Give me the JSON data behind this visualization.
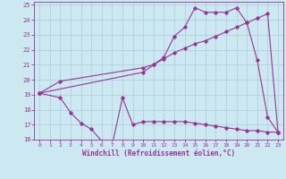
{
  "xlabel": "Windchill (Refroidissement éolien,°C)",
  "bg_color": "#cce8f0",
  "grid_color": "#aaccd8",
  "line_color": "#993399",
  "xlim": [
    -0.5,
    23.5
  ],
  "ylim": [
    16,
    25.2
  ],
  "xticks": [
    0,
    1,
    2,
    3,
    4,
    5,
    6,
    7,
    8,
    9,
    10,
    11,
    12,
    13,
    14,
    15,
    16,
    17,
    18,
    19,
    20,
    21,
    22,
    23
  ],
  "yticks": [
    16,
    17,
    18,
    19,
    20,
    21,
    22,
    23,
    24,
    25
  ],
  "series": [
    {
      "x": [
        0,
        2,
        3,
        4,
        5,
        6,
        7,
        8,
        9,
        10,
        11,
        12,
        13,
        14,
        15,
        16,
        17,
        18,
        19,
        20,
        21,
        22,
        23
      ],
      "y": [
        19.1,
        18.8,
        17.8,
        17.1,
        16.7,
        15.9,
        15.6,
        18.8,
        17.0,
        17.2,
        17.2,
        17.2,
        17.2,
        17.2,
        17.1,
        17.0,
        16.9,
        16.8,
        16.7,
        16.6,
        16.6,
        16.5,
        16.5
      ]
    },
    {
      "x": [
        0,
        2,
        10,
        11,
        12,
        13,
        14,
        15,
        16,
        17,
        18,
        19,
        20,
        21,
        22,
        23
      ],
      "y": [
        19.1,
        19.9,
        20.8,
        21.0,
        21.5,
        22.9,
        23.5,
        24.8,
        24.5,
        24.5,
        24.5,
        24.8,
        23.8,
        21.3,
        17.5,
        16.5
      ]
    },
    {
      "x": [
        0,
        10,
        11,
        12,
        13,
        14,
        15,
        16,
        17,
        18,
        19,
        20,
        21,
        22,
        23
      ],
      "y": [
        19.1,
        20.5,
        21.0,
        21.4,
        21.8,
        22.1,
        22.4,
        22.6,
        22.9,
        23.2,
        23.5,
        23.8,
        24.1,
        24.4,
        16.5
      ]
    }
  ]
}
